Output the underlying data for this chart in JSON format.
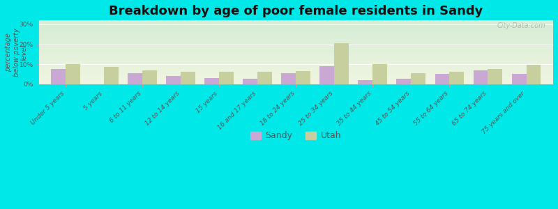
{
  "title": "Breakdown by age of poor female residents in Sandy",
  "categories": [
    "Under 5 years",
    "5 years",
    "6 to 11 years",
    "12 to 14 years",
    "15 years",
    "16 and 17 years",
    "18 to 24 years",
    "25 to 34 years",
    "35 to 44 years",
    "45 to 54 years",
    "55 to 64 years",
    "65 to 74 years",
    "75 years and over"
  ],
  "sandy_values": [
    7.5,
    0.0,
    5.5,
    4.0,
    3.0,
    2.5,
    5.5,
    9.0,
    2.0,
    2.5,
    5.0,
    7.0,
    5.0
  ],
  "utah_values": [
    10.0,
    8.5,
    7.0,
    6.0,
    6.0,
    6.0,
    6.5,
    20.5,
    10.0,
    5.5,
    6.0,
    7.5,
    9.5
  ],
  "sandy_color": "#c9a8d4",
  "utah_color": "#c8cf9e",
  "ylabel": "percentage\nbelow poverty\nlevel",
  "ylim": [
    0,
    32
  ],
  "yticks": [
    0,
    10,
    20,
    30
  ],
  "ytick_labels": [
    "0%",
    "10%",
    "20%",
    "30%"
  ],
  "background_color": "#00e8e8",
  "plot_bg_top": "#f0f5e0",
  "plot_bg_bottom": "#d5ecd5",
  "title_fontsize": 13,
  "axis_label_fontsize": 7,
  "tick_label_fontsize": 6.5,
  "legend_fontsize": 9,
  "bar_width": 0.38,
  "watermark": "City-Data.com"
}
